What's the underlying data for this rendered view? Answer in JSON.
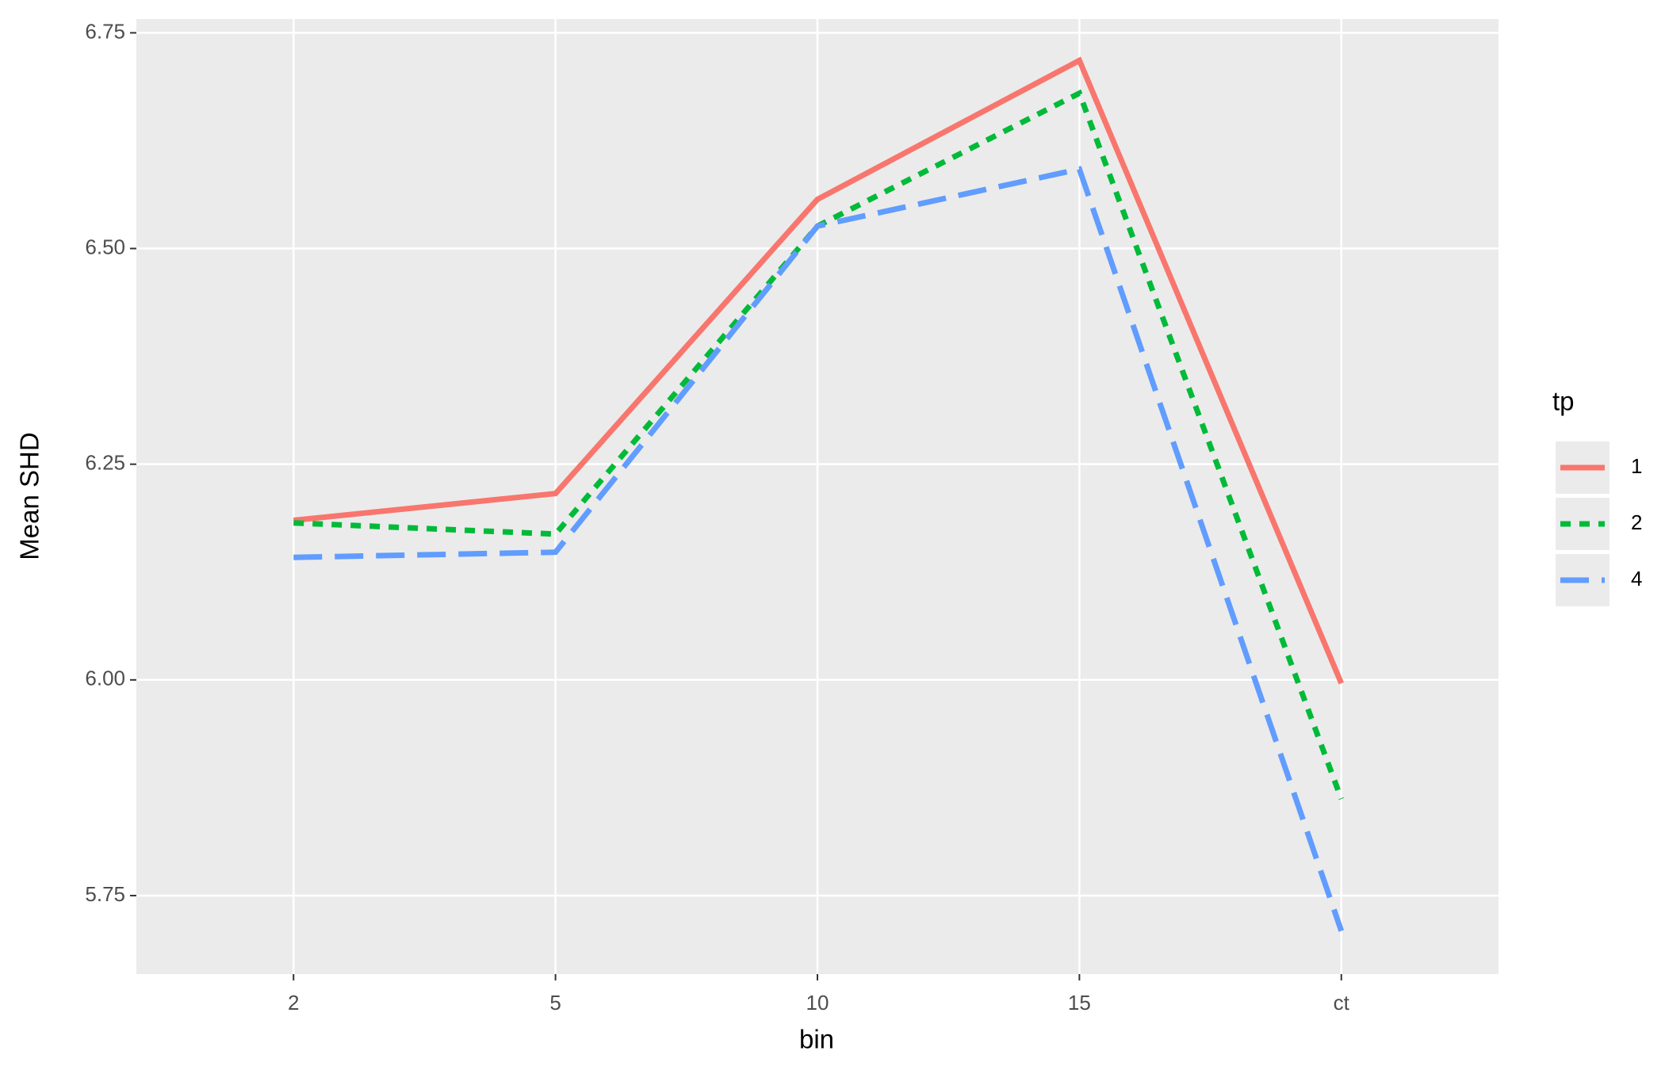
{
  "chart_data": {
    "type": "line",
    "x_label": "bin",
    "y_label": "Mean SHD",
    "categories": [
      "2",
      "5",
      "10",
      "15",
      "ct"
    ],
    "series": [
      {
        "name": "1",
        "color": "#F8766D",
        "dash": "solid",
        "values": [
          6.185,
          6.216,
          6.557,
          6.718,
          5.996
        ]
      },
      {
        "name": "2",
        "color": "#00BA38",
        "dash": "dotted",
        "values": [
          6.182,
          6.169,
          6.526,
          6.68,
          5.862
        ]
      },
      {
        "name": "4",
        "color": "#619CFF",
        "dash": "dashed",
        "values": [
          6.142,
          6.148,
          6.526,
          6.592,
          5.709
        ]
      }
    ],
    "ylim": [
      5.659,
      6.766
    ],
    "yticks": [
      5.75,
      {
        "value": 6,
        "label": "6.00"
      },
      6.25,
      {
        "value": 6.5,
        "label": "6.50"
      },
      6.75
    ],
    "grid": true,
    "legend_title": "tp"
  }
}
